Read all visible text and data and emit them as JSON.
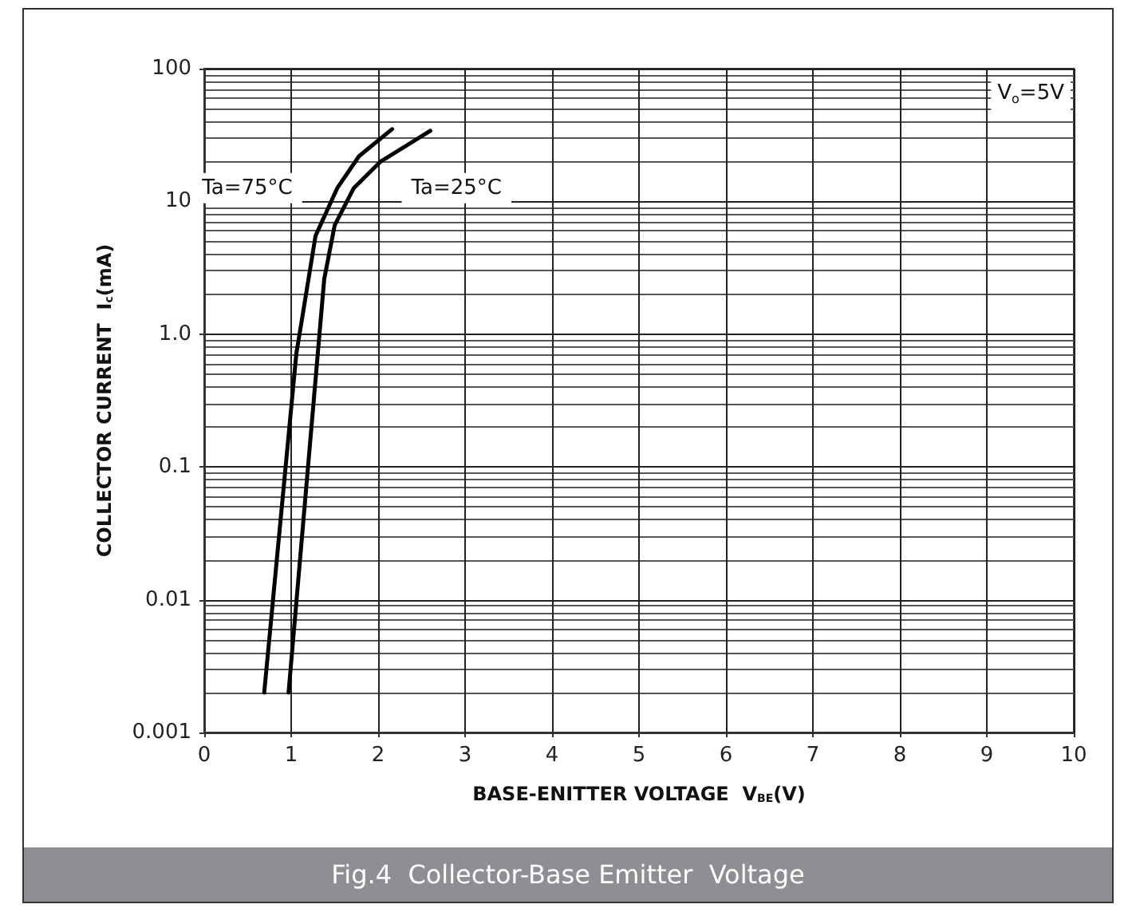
{
  "chart_data": {
    "type": "line",
    "title": "Fig.4  Collector-Base Emitter  Voltage",
    "xlabel": "BASE-ENITTER VOLTAGE  V$_{BE}$(V)",
    "ylabel": "COLLECTOR CURRENT  I$_{c}$(mA)",
    "annotations": [
      "V$_{o}$=5V"
    ],
    "series": [
      {
        "name": "Ta=75°C",
        "color": "#000000",
        "x": [
          0.69,
          1.06,
          1.13,
          1.28,
          1.53,
          1.78,
          2.16
        ],
        "values": [
          0.002,
          0.72,
          1.37,
          5.5,
          12.6,
          21.9,
          35
        ]
      },
      {
        "name": "Ta=25°C",
        "color": "#000000",
        "x": [
          0.97,
          1.29,
          1.38,
          1.5,
          1.72,
          2.03,
          2.6
        ],
        "values": [
          0.002,
          0.54,
          2.6,
          6.6,
          12.6,
          20,
          34
        ]
      }
    ],
    "xlim": [
      0,
      10
    ],
    "xticks": [
      0,
      1,
      2,
      3,
      4,
      5,
      6,
      7,
      8,
      9,
      10
    ],
    "ylim": [
      0.001,
      100
    ],
    "yticks": [
      0.001,
      0.01,
      0.1,
      {
        "value": 1,
        "label": "1.0"
      },
      10,
      100
    ],
    "log": "y",
    "grid": true,
    "marker": "none",
    "line_style": "solid"
  }
}
